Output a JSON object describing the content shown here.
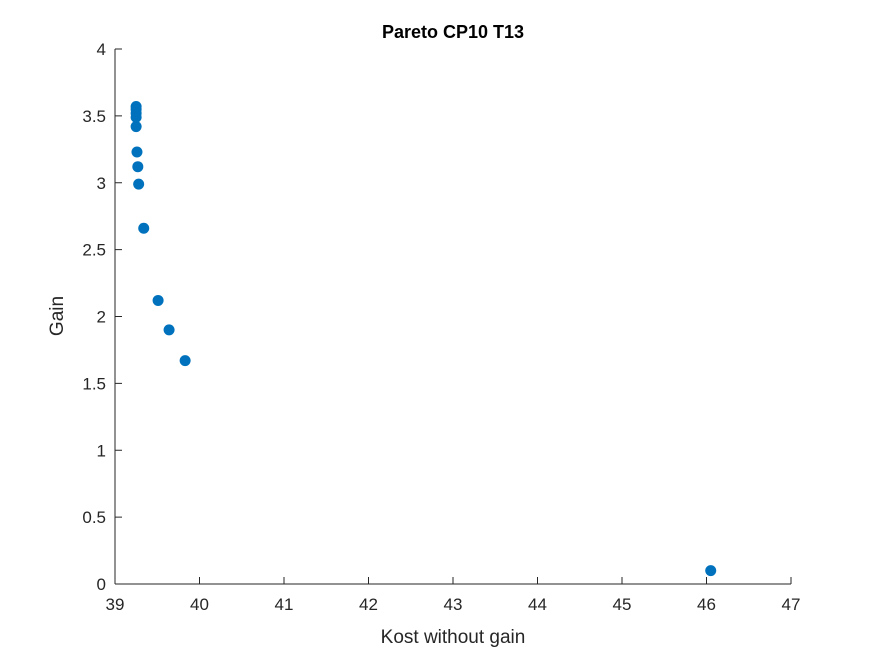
{
  "chart_data": {
    "type": "scatter",
    "title": "Pareto CP10 T13",
    "xlabel": "Kost without gain",
    "ylabel": "Gain",
    "xlim": [
      39,
      47
    ],
    "ylim": [
      0,
      4
    ],
    "x_ticks": [
      39,
      40,
      41,
      42,
      43,
      44,
      45,
      46,
      47
    ],
    "y_ticks": [
      0,
      0.5,
      1,
      1.5,
      2,
      2.5,
      3,
      3.5,
      4
    ],
    "x_tick_labels": [
      "39",
      "40",
      "41",
      "42",
      "43",
      "44",
      "45",
      "46",
      "47"
    ],
    "y_tick_labels": [
      "0",
      "0.5",
      "1",
      "1.5",
      "2",
      "2.5",
      "3",
      "3.5",
      "4"
    ],
    "grid": false,
    "marker_color": "#0072BD",
    "points": [
      {
        "x": 39.25,
        "y": 3.57
      },
      {
        "x": 39.25,
        "y": 3.55
      },
      {
        "x": 39.25,
        "y": 3.52
      },
      {
        "x": 39.25,
        "y": 3.49
      },
      {
        "x": 39.25,
        "y": 3.42
      },
      {
        "x": 39.26,
        "y": 3.23
      },
      {
        "x": 39.27,
        "y": 3.12
      },
      {
        "x": 39.28,
        "y": 2.99
      },
      {
        "x": 39.34,
        "y": 2.66
      },
      {
        "x": 39.51,
        "y": 2.12
      },
      {
        "x": 39.64,
        "y": 1.9
      },
      {
        "x": 39.83,
        "y": 1.67
      },
      {
        "x": 46.05,
        "y": 0.1
      }
    ]
  }
}
